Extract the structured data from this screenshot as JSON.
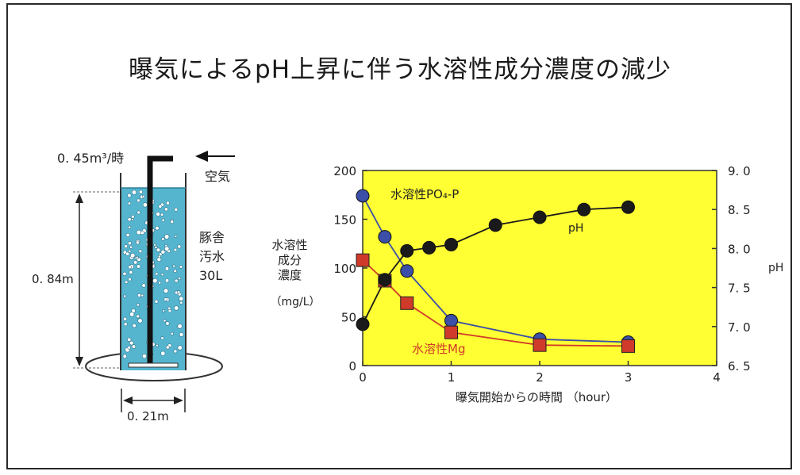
{
  "title": "曝気によるpH上昇に伴う水溶性成分濃度の減少",
  "apparatus": {
    "air_flow_label": "0. 45m³/時",
    "air_label": "空気",
    "height_label": "0. 84m",
    "width_label": "0. 21m",
    "sample_label_lines": [
      "豚舎",
      "汚水",
      "30L"
    ]
  },
  "chart_data": {
    "type": "line",
    "x_ticks": [
      "0",
      "1",
      "2",
      "3",
      "4"
    ],
    "xlabel": "曝気開始からの時間 （hour）",
    "xlim": [
      0,
      4
    ],
    "ylim_left": [
      0,
      200
    ],
    "ylim_right": [
      6.5,
      9.0
    ],
    "y_left_ticks": [
      "0",
      "50",
      "100",
      "150",
      "200"
    ],
    "y_right_ticks": [
      "6. 5",
      "7. 0",
      "7. 5",
      "8. 0",
      "8. 5",
      "9. 0"
    ],
    "ylabel_left_lines": [
      "水溶性",
      "成分",
      "濃度",
      "",
      "（mg/L）"
    ],
    "ylabel_right": "pH",
    "plot_bg": "#ffff33",
    "series": [
      {
        "name": "水溶性PO₄-P",
        "axis": "left",
        "color": "#3b4fa8",
        "marker": "circle",
        "x": [
          0,
          0.25,
          0.5,
          1,
          2,
          3
        ],
        "y": [
          174,
          132,
          97,
          46,
          27,
          24
        ]
      },
      {
        "name": "水溶性Mg",
        "axis": "left",
        "color": "#d03a2a",
        "marker": "square",
        "x": [
          0,
          0.25,
          0.5,
          1,
          2,
          3
        ],
        "y": [
          108,
          87,
          64,
          34,
          21,
          20
        ]
      },
      {
        "name": "pH",
        "axis": "right",
        "color": "#1a1a1a",
        "marker": "circle",
        "x": [
          0,
          0.25,
          0.5,
          0.75,
          1,
          1.5,
          2,
          2.5,
          3
        ],
        "y": [
          7.03,
          7.6,
          7.97,
          8.01,
          8.05,
          8.3,
          8.4,
          8.5,
          8.53
        ]
      }
    ]
  }
}
